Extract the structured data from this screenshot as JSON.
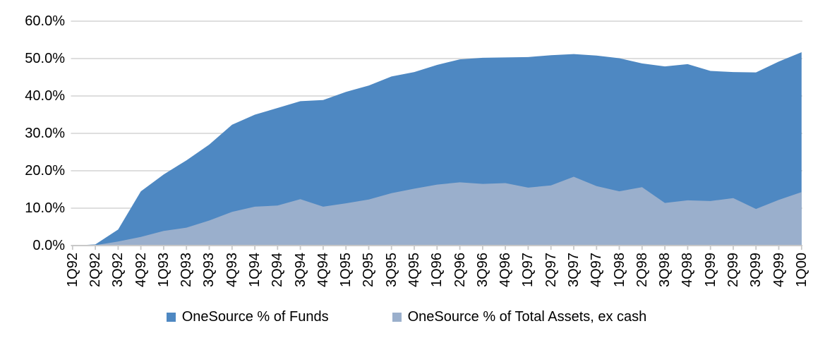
{
  "chart_data": {
    "type": "area",
    "title": "",
    "xlabel": "",
    "ylabel": "",
    "grid": true,
    "legend_position": "bottom",
    "areas_overlap": true,
    "ylim": [
      0,
      60
    ],
    "ytick_step": 10,
    "ytick_labels": [
      "0.0%",
      "10.0%",
      "20.0%",
      "30.0%",
      "40.0%",
      "50.0%",
      "60.0%"
    ],
    "categories": [
      "1Q92",
      "2Q92",
      "3Q92",
      "4Q92",
      "1Q93",
      "2Q93",
      "3Q93",
      "4Q93",
      "1Q94",
      "2Q94",
      "3Q94",
      "4Q94",
      "1Q95",
      "2Q95",
      "3Q95",
      "4Q95",
      "1Q96",
      "2Q96",
      "3Q96",
      "4Q96",
      "1Q97",
      "2Q97",
      "3Q97",
      "4Q97",
      "1Q98",
      "2Q98",
      "3Q98",
      "4Q98",
      "1Q99",
      "2Q99",
      "3Q99",
      "4Q99",
      "1Q00"
    ],
    "series": [
      {
        "name": "OneSource % of Funds",
        "color": "#4E88C2",
        "values": [
          0,
          0.3,
          4.3,
          14.5,
          19.0,
          22.8,
          27.0,
          32.3,
          35.0,
          36.8,
          38.6,
          38.9,
          41.1,
          42.8,
          45.2,
          46.4,
          48.3,
          49.8,
          50.2,
          50.3,
          50.4,
          50.9,
          51.2,
          50.8,
          50.1,
          48.7,
          47.9,
          48.5,
          46.7,
          46.4,
          46.3,
          49.2,
          51.7
        ]
      },
      {
        "name": "OneSource % of Total Assets, ex cash",
        "color": "#9AAFCC",
        "values": [
          0,
          0.1,
          1.1,
          2.3,
          3.9,
          4.8,
          6.7,
          9.0,
          10.4,
          10.7,
          12.4,
          10.4,
          11.3,
          12.3,
          14.0,
          15.2,
          16.3,
          16.9,
          16.5,
          16.7,
          15.5,
          16.1,
          18.4,
          15.9,
          14.5,
          15.6,
          11.4,
          12.1,
          11.9,
          12.7,
          9.8,
          12.2,
          14.3
        ]
      }
    ]
  },
  "colors": {
    "gridline": "#D9D9D9",
    "axis": "#C8C8C8",
    "text": "#000000",
    "background": "#FFFFFF"
  }
}
